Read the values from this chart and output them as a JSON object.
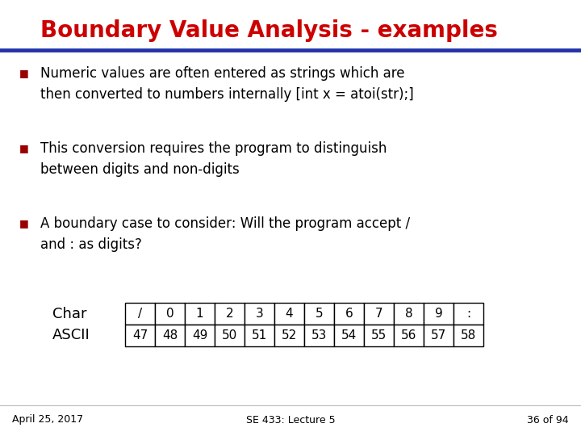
{
  "title": "Boundary Value Analysis - examples",
  "title_color": "#CC0000",
  "slide_bg": "#FFFFFF",
  "bullet_color": "#990000",
  "text_color": "#000000",
  "bullets": [
    "Numeric values are often entered as strings which are\nthen converted to numbers internally [int x = atoi(str);]",
    "This conversion requires the program to distinguish\nbetween digits and non-digits",
    "A boundary case to consider: Will the program accept /\nand : as digits?"
  ],
  "char_row": [
    "/",
    "0",
    "1",
    "2",
    "3",
    "4",
    "5",
    "6",
    "7",
    "8",
    "9",
    ":"
  ],
  "ascii_row": [
    "47",
    "48",
    "49",
    "50",
    "51",
    "52",
    "53",
    "54",
    "55",
    "56",
    "57",
    "58"
  ],
  "table_label_char": "Char",
  "table_label_ascii": "ASCII",
  "footer_left": "April 25, 2017",
  "footer_center": "SE 433: Lecture 5",
  "footer_right": "36 of 94",
  "footer_color": "#000000",
  "divider_color": "#2233AA",
  "font_family": "DejaVu Sans"
}
